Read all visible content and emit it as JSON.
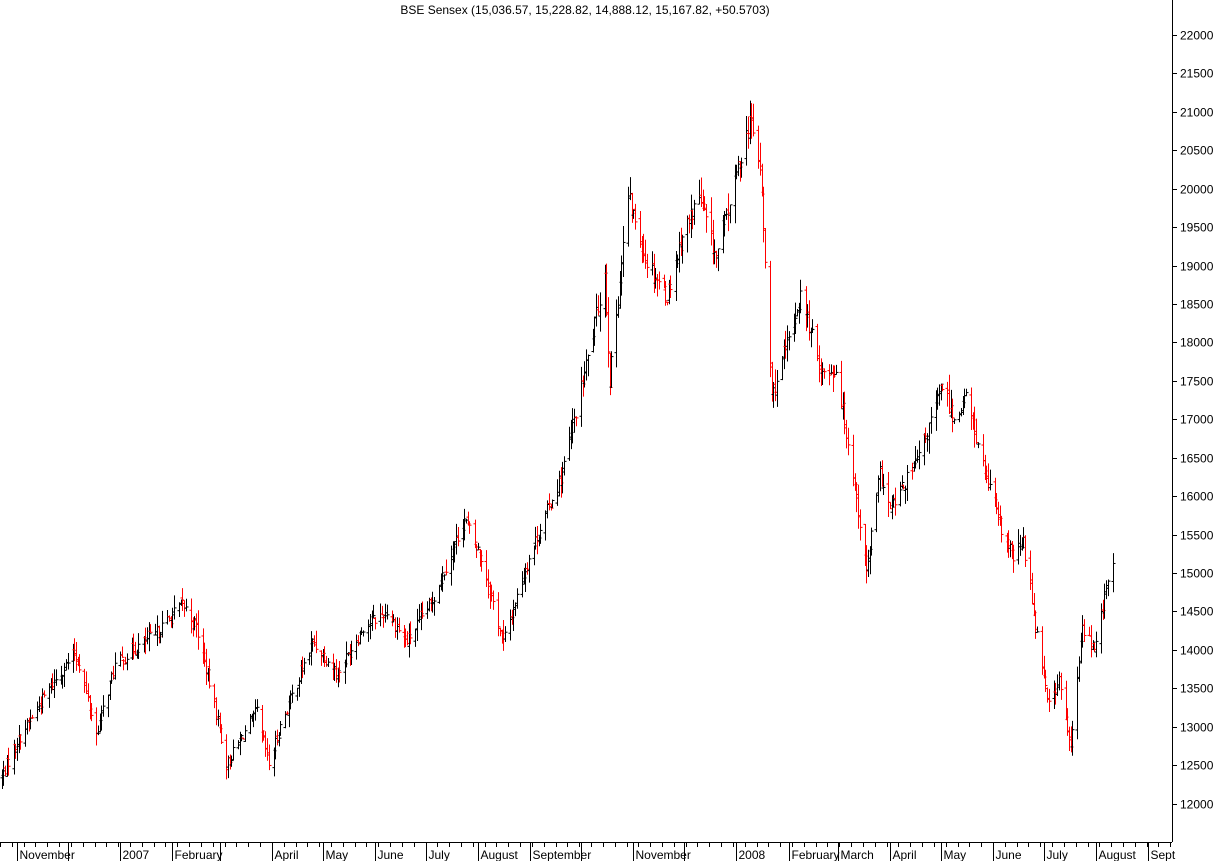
{
  "chart_data": {
    "type": "ohlc",
    "title": "BSE Sensex (15,036.57, 15,228.82, 14,888.12, 15,167.82, +50.5703)",
    "ylim": [
      11500,
      22300
    ],
    "y_ticks": [
      12000,
      12500,
      13000,
      13500,
      14000,
      14500,
      15000,
      15500,
      16000,
      16500,
      17000,
      17500,
      18000,
      18500,
      19000,
      19500,
      20000,
      20500,
      21000,
      21500,
      22000
    ],
    "x_domain": [
      "2006-10-22",
      "2008-09-15"
    ],
    "x_labels": [
      {
        "date": "2006-10-01",
        "label": "er"
      },
      {
        "date": "2006-11-01",
        "label": "November"
      },
      {
        "date": "2006-12-01",
        "label": ""
      },
      {
        "date": "2007-01-01",
        "label": "2007"
      },
      {
        "date": "2007-02-01",
        "label": "February"
      },
      {
        "date": "2007-03-01",
        "label": ""
      },
      {
        "date": "2007-04-01",
        "label": "April"
      },
      {
        "date": "2007-05-01",
        "label": "May"
      },
      {
        "date": "2007-06-01",
        "label": "June"
      },
      {
        "date": "2007-07-01",
        "label": "July"
      },
      {
        "date": "2007-08-01",
        "label": "August"
      },
      {
        "date": "2007-09-01",
        "label": "September"
      },
      {
        "date": "2007-10-01",
        "label": ""
      },
      {
        "date": "2007-11-01",
        "label": "November"
      },
      {
        "date": "2007-12-01",
        "label": ""
      },
      {
        "date": "2008-01-01",
        "label": "2008"
      },
      {
        "date": "2008-02-01",
        "label": "February"
      },
      {
        "date": "2008-03-01",
        "label": "March"
      },
      {
        "date": "2008-04-01",
        "label": "April"
      },
      {
        "date": "2008-05-01",
        "label": "May"
      },
      {
        "date": "2008-06-01",
        "label": "June"
      },
      {
        "date": "2008-07-01",
        "label": "July"
      },
      {
        "date": "2008-08-01",
        "label": "August"
      },
      {
        "date": "2008-09-01",
        "label": "Sept"
      }
    ],
    "anchors": [
      {
        "date": "2006-10-23",
        "close": 12350
      },
      {
        "date": "2006-11-01",
        "close": 12800
      },
      {
        "date": "2006-11-20",
        "close": 13500
      },
      {
        "date": "2006-12-05",
        "close": 13950
      },
      {
        "date": "2006-12-08",
        "close": 13800
      },
      {
        "date": "2006-12-18",
        "close": 12900
      },
      {
        "date": "2006-12-29",
        "close": 13800
      },
      {
        "date": "2007-01-12",
        "close": 14050
      },
      {
        "date": "2007-01-22",
        "close": 14200
      },
      {
        "date": "2007-02-07",
        "close": 14600
      },
      {
        "date": "2007-02-15",
        "close": 14300
      },
      {
        "date": "2007-02-27",
        "close": 13200
      },
      {
        "date": "2007-03-05",
        "close": 12500
      },
      {
        "date": "2007-03-15",
        "close": 12900
      },
      {
        "date": "2007-03-23",
        "close": 13200
      },
      {
        "date": "2007-03-30",
        "close": 12500
      },
      {
        "date": "2007-04-06",
        "close": 13000
      },
      {
        "date": "2007-04-25",
        "close": 14100
      },
      {
        "date": "2007-05-10",
        "close": 13700
      },
      {
        "date": "2007-05-25",
        "close": 14300
      },
      {
        "date": "2007-06-08",
        "close": 14500
      },
      {
        "date": "2007-06-20",
        "close": 14100
      },
      {
        "date": "2007-07-05",
        "close": 14650
      },
      {
        "date": "2007-07-24",
        "close": 15700
      },
      {
        "date": "2007-08-03",
        "close": 15200
      },
      {
        "date": "2007-08-16",
        "close": 14100
      },
      {
        "date": "2007-08-31",
        "close": 15200
      },
      {
        "date": "2007-09-20",
        "close": 16300
      },
      {
        "date": "2007-10-05",
        "close": 17800
      },
      {
        "date": "2007-10-15",
        "close": 18900
      },
      {
        "date": "2007-10-18",
        "close": 17500
      },
      {
        "date": "2007-10-29",
        "close": 19900
      },
      {
        "date": "2007-11-08",
        "close": 19100
      },
      {
        "date": "2007-11-21",
        "close": 18600
      },
      {
        "date": "2007-11-30",
        "close": 19400
      },
      {
        "date": "2007-12-10",
        "close": 19900
      },
      {
        "date": "2007-12-20",
        "close": 19100
      },
      {
        "date": "2008-01-09",
        "close": 20900
      },
      {
        "date": "2008-01-15",
        "close": 20300
      },
      {
        "date": "2008-01-22",
        "close": 17300
      },
      {
        "date": "2008-01-29",
        "close": 17800
      },
      {
        "date": "2008-02-08",
        "close": 18600
      },
      {
        "date": "2008-02-21",
        "close": 17600
      },
      {
        "date": "2008-02-29",
        "close": 17650
      },
      {
        "date": "2008-03-10",
        "close": 16300
      },
      {
        "date": "2008-03-18",
        "close": 15000
      },
      {
        "date": "2008-03-26",
        "close": 16300
      },
      {
        "date": "2008-04-01",
        "close": 15800
      },
      {
        "date": "2008-04-18",
        "close": 16500
      },
      {
        "date": "2008-05-02",
        "close": 17450
      },
      {
        "date": "2008-05-09",
        "close": 17000
      },
      {
        "date": "2008-05-16",
        "close": 17300
      },
      {
        "date": "2008-05-26",
        "close": 16400
      },
      {
        "date": "2008-06-06",
        "close": 15550
      },
      {
        "date": "2008-06-13",
        "close": 15200
      },
      {
        "date": "2008-06-19",
        "close": 15400
      },
      {
        "date": "2008-06-27",
        "close": 14200
      },
      {
        "date": "2008-07-04",
        "close": 13300
      },
      {
        "date": "2008-07-10",
        "close": 13600
      },
      {
        "date": "2008-07-17",
        "close": 12700
      },
      {
        "date": "2008-07-24",
        "close": 14300
      },
      {
        "date": "2008-07-31",
        "close": 14000
      },
      {
        "date": "2008-08-06",
        "close": 14700
      },
      {
        "date": "2008-08-11",
        "close": 15100
      }
    ]
  }
}
